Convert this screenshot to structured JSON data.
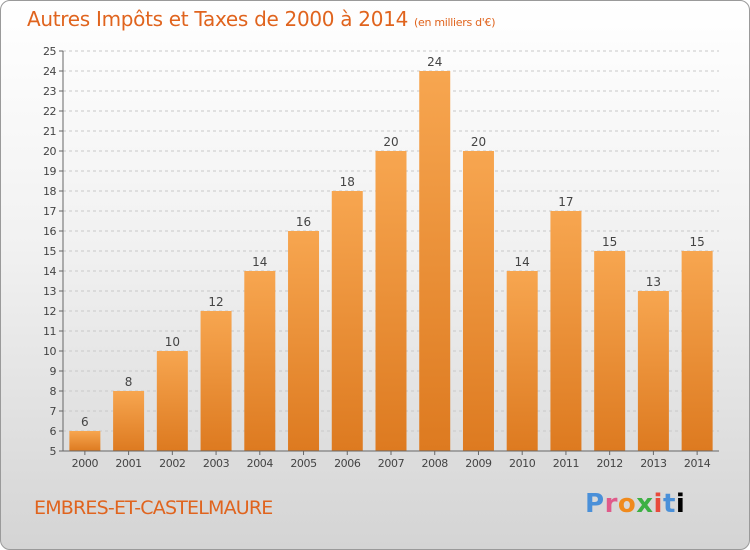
{
  "header": {
    "title": "Autres Impôts et Taxes de 2000 à 2014",
    "subtitle": "(en milliers d'€)"
  },
  "footer": {
    "commune": "EMBRES-ET-CASTELMAURE",
    "logo_letters": [
      "P",
      "r",
      "o",
      "x",
      "i",
      "t",
      "i"
    ]
  },
  "colors": {
    "title": "#E0641E",
    "bar_top": "#F7A650",
    "bar_bottom": "#DD7A20"
  },
  "chart_data": {
    "type": "bar",
    "title": "Autres Impôts et Taxes de 2000 à 2014",
    "categories": [
      "2000",
      "2001",
      "2002",
      "2003",
      "2004",
      "2005",
      "2006",
      "2007",
      "2008",
      "2009",
      "2010",
      "2011",
      "2012",
      "2013",
      "2014"
    ],
    "values": [
      6,
      8,
      10,
      12,
      14,
      16,
      18,
      20,
      24,
      20,
      14,
      17,
      15,
      13,
      15
    ],
    "ylim": [
      5,
      25
    ],
    "yticks": [
      5,
      6,
      7,
      8,
      9,
      10,
      11,
      12,
      13,
      14,
      15,
      16,
      17,
      18,
      19,
      20,
      21,
      22,
      23,
      24,
      25
    ],
    "grid": "dashed-horizontal",
    "legend": "none"
  }
}
